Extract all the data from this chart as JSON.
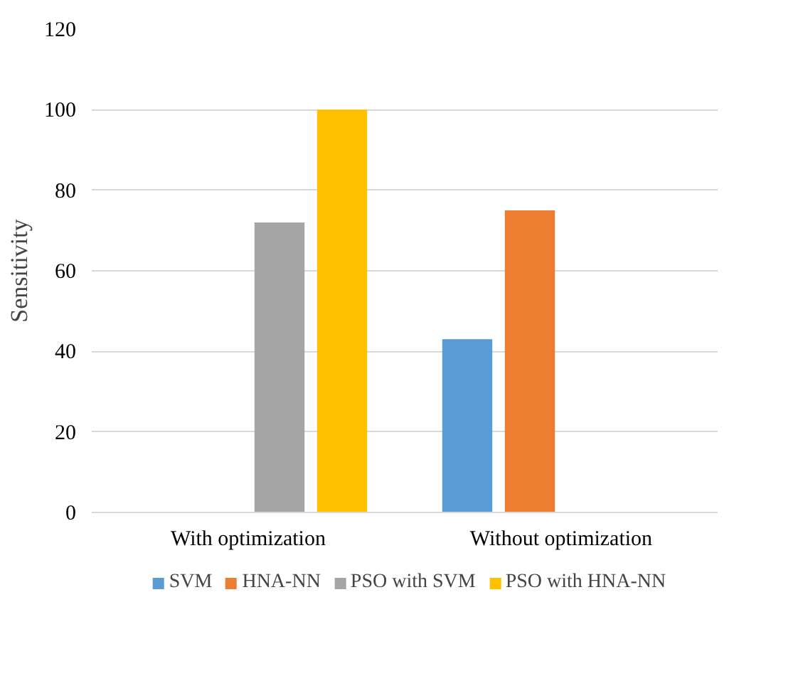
{
  "chart_data": {
    "type": "bar",
    "ylabel": "Sensitivity",
    "categories": [
      "With optimization",
      "Without optimization"
    ],
    "series": [
      {
        "name": "SVM",
        "color": "#5b9bd5",
        "values": [
          null,
          43
        ]
      },
      {
        "name": "HNA-NN",
        "color": "#ed7d31",
        "values": [
          null,
          75
        ]
      },
      {
        "name": "PSO with SVM",
        "color": "#a5a5a5",
        "values": [
          72,
          null
        ]
      },
      {
        "name": "PSO with HNA-NN",
        "color": "#ffc000",
        "values": [
          100,
          null
        ]
      }
    ],
    "ylim": [
      0,
      120
    ],
    "yticks": [
      0,
      20,
      40,
      60,
      80,
      100,
      120
    ],
    "grid": "y",
    "legend": "bottom"
  }
}
